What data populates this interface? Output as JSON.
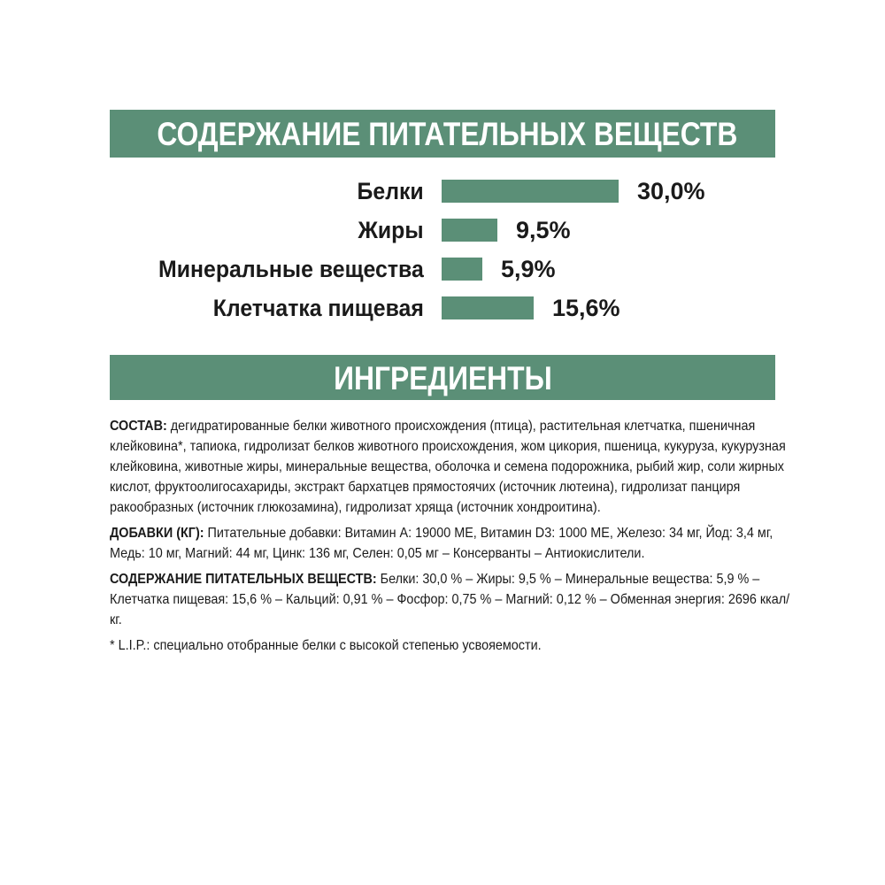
{
  "colors": {
    "accent": "#5b8f77",
    "text": "#1a1a1a"
  },
  "nutrients_title": "СОДЕРЖАНИЕ ПИТАТЕЛЬНЫХ ВЕЩЕСТВ",
  "chart_data": {
    "type": "bar",
    "orientation": "horizontal",
    "categories": [
      "Белки",
      "Жиры",
      "Минеральные вещества",
      "Клетчатка пищевая"
    ],
    "values": [
      30.0,
      9.5,
      5.9,
      15.6
    ],
    "value_labels": [
      "30,0%",
      "9,5%",
      "5,9%",
      "15,6%"
    ],
    "unit": "%"
  },
  "ingredients_title": "ИНГРЕДИЕНТЫ",
  "paragraphs": [
    {
      "label": "СОСТАВ:",
      "text": " дегидратированные белки животного происхождения (птица), растительная клетчатка, пшеничная клейковина*, тапиока, гидролизат белков животного происхождения, жом цикория, пшеница, кукуруза, кукурузная клейковина, животные жиры, минеральные вещества, оболочка и семена подорожника, рыбий жир, соли жирных кислот, фруктоолигосахариды, экстракт бархатцев прямостоячих (источник лютеина), гидролизат панциря ракообразных (источник глюкозамина), гидролизат хряща (источник хондроитина)."
    },
    {
      "label": "ДОБАВКИ (КГ):",
      "text": " Питательные добавки: Витамин A: 19000 МЕ, Витамин D3: 1000 МЕ, Железо: 34 мг, Йод: 3,4 мг, Медь: 10 мг, Магний: 44 мг, Цинк: 136 мг, Селен: 0,05 мг – Консерванты – Антиокислители."
    },
    {
      "label": "СОДЕРЖАНИЕ ПИТАТЕЛЬНЫХ ВЕЩЕСТВ:",
      "text": " Белки: 30,0 % – Жиры: 9,5 % – Минеральные вещества: 5,9 % – Клетчатка пищевая: 15,6 % – Кальций: 0,91 % – Фосфор: 0,75 % – Магний: 0,12 % – Обменная энергия: 2696 ккал/кг."
    },
    {
      "label": "",
      "text": "* L.I.P.: специально отобранные белки с высокой степенью усвояемости."
    }
  ]
}
